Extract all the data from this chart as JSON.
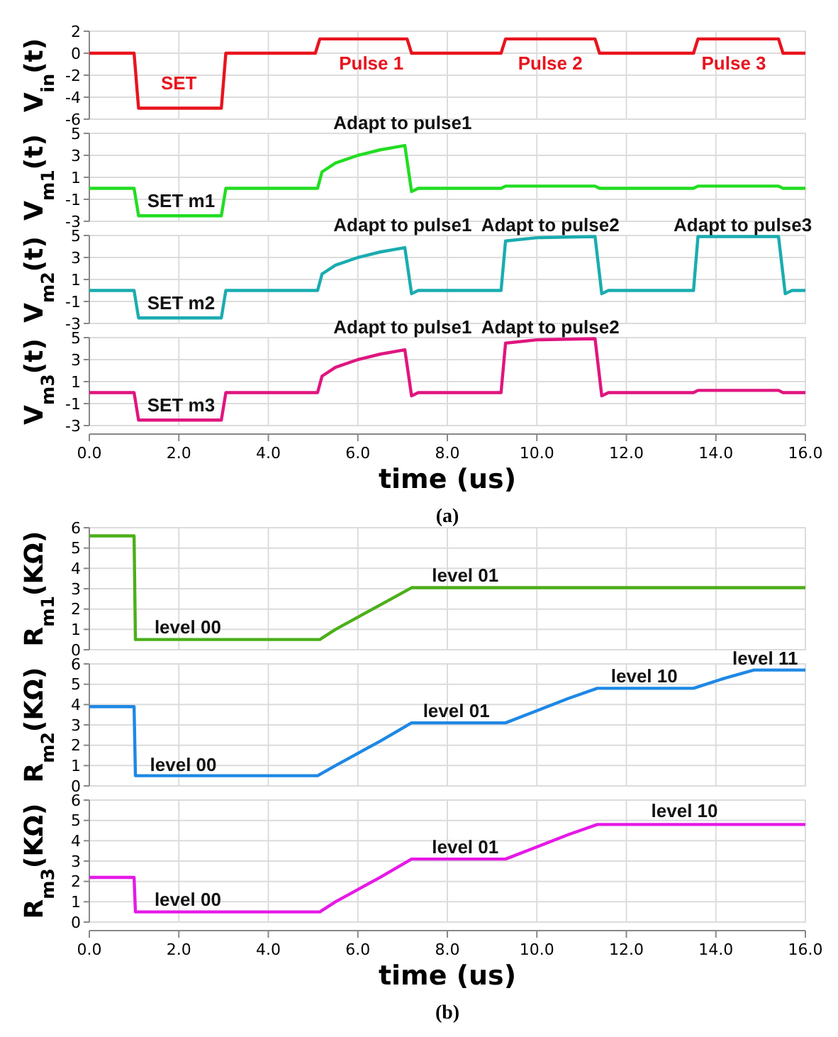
{
  "chart_data": [
    {
      "type": "line",
      "ylabel": "V$_{in}$(t)",
      "xlim": [
        0,
        16
      ],
      "xticks": [
        {
          "value": 0,
          "label": null
        },
        {
          "value": 2,
          "label": null
        },
        {
          "value": 4,
          "label": null
        },
        {
          "value": 6,
          "label": null
        },
        {
          "value": 8,
          "label": null
        },
        {
          "value": 10,
          "label": null
        },
        {
          "value": 12,
          "label": null
        },
        {
          "value": 14,
          "label": null
        },
        {
          "value": 16,
          "label": null
        }
      ],
      "ylim": [
        -6,
        2
      ],
      "yticks": [
        -6,
        -4,
        -2,
        0,
        2
      ],
      "grid": true,
      "tick_labels": "y",
      "series": [
        {
          "color": "#e8141e",
          "x": [
            0,
            1.0,
            1.1,
            2.95,
            3.05,
            5.05,
            5.15,
            7.1,
            7.2,
            9.2,
            9.3,
            11.3,
            11.4,
            13.5,
            13.6,
            15.4,
            15.5,
            16
          ],
          "values": [
            0,
            0,
            -5,
            -5,
            0,
            0,
            1.3,
            1.3,
            0,
            0,
            1.3,
            1.3,
            0,
            0,
            1.3,
            1.3,
            0,
            0
          ]
        }
      ],
      "annotations": [
        "SET",
        "Pulse 1",
        "Pulse 2",
        "Pulse 3"
      ]
    },
    {
      "type": "line",
      "ylabel": "V$_{m1}$(t)",
      "xlim": [
        0,
        16
      ],
      "xticks": [
        {
          "value": 0,
          "label": null
        },
        {
          "value": 2,
          "label": null
        },
        {
          "value": 4,
          "label": null
        },
        {
          "value": 6,
          "label": null
        },
        {
          "value": 8,
          "label": null
        },
        {
          "value": 10,
          "label": null
        },
        {
          "value": 12,
          "label": null
        },
        {
          "value": 14,
          "label": null
        },
        {
          "value": 16,
          "label": null
        }
      ],
      "ylim": [
        -3,
        5
      ],
      "yticks": [
        -3,
        -1,
        1,
        3,
        5
      ],
      "grid": true,
      "tick_labels": "y",
      "series": [
        {
          "color": "#22dd22",
          "x": [
            0,
            1.0,
            1.1,
            2.95,
            3.05,
            5.1,
            5.2,
            5.5,
            6.0,
            6.5,
            7.05,
            7.2,
            7.35,
            9.2,
            9.3,
            11.3,
            11.4,
            13.5,
            13.6,
            15.4,
            15.5,
            16
          ],
          "values": [
            0,
            0,
            -2.5,
            -2.5,
            0,
            0,
            1.5,
            2.3,
            3.0,
            3.5,
            3.9,
            -0.3,
            0,
            0,
            0.2,
            0.2,
            0,
            0,
            0.2,
            0.2,
            0,
            0
          ]
        }
      ],
      "annotations": [
        "Adapt to pulse1",
        "SET m1"
      ]
    },
    {
      "type": "line",
      "ylabel": "V$_{m2}$(t)",
      "xlim": [
        0,
        16
      ],
      "xticks": [
        {
          "value": 0,
          "label": null
        },
        {
          "value": 2,
          "label": null
        },
        {
          "value": 4,
          "label": null
        },
        {
          "value": 6,
          "label": null
        },
        {
          "value": 8,
          "label": null
        },
        {
          "value": 10,
          "label": null
        },
        {
          "value": 12,
          "label": null
        },
        {
          "value": 14,
          "label": null
        },
        {
          "value": 16,
          "label": null
        }
      ],
      "ylim": [
        -3,
        5
      ],
      "yticks": [
        -3,
        -1,
        1,
        3,
        5
      ],
      "grid": true,
      "tick_labels": "y",
      "series": [
        {
          "color": "#1aacb0",
          "x": [
            0,
            1.0,
            1.1,
            2.95,
            3.05,
            5.1,
            5.2,
            5.5,
            6.0,
            6.5,
            7.05,
            7.2,
            7.35,
            9.2,
            9.3,
            10.0,
            11.3,
            11.45,
            11.6,
            13.5,
            13.6,
            15.4,
            15.55,
            15.7,
            16
          ],
          "values": [
            0,
            0,
            -2.5,
            -2.5,
            0,
            0,
            1.5,
            2.3,
            3.0,
            3.5,
            3.9,
            -0.3,
            0,
            0,
            4.5,
            4.8,
            4.9,
            -0.3,
            0,
            0,
            4.9,
            4.9,
            -0.3,
            0,
            0
          ]
        }
      ],
      "annotations": [
        "Adapt to pulse1",
        "Adapt to pulse2",
        "Adapt to pulse3",
        "SET m2"
      ]
    },
    {
      "type": "line",
      "ylabel": "V$_{m3}$(t)",
      "xlabel": "time (us)",
      "xlim": [
        0,
        16
      ],
      "xticks": [
        {
          "value": 0,
          "label": "0.0"
        },
        {
          "value": 2,
          "label": "2.0"
        },
        {
          "value": 4,
          "label": "4.0"
        },
        {
          "value": 6,
          "label": "6.0"
        },
        {
          "value": 8,
          "label": "8.0"
        },
        {
          "value": 10,
          "label": "10.0"
        },
        {
          "value": 12,
          "label": "12.0"
        },
        {
          "value": 14,
          "label": "14.0"
        },
        {
          "value": 16,
          "label": "16.0"
        }
      ],
      "ylim": [
        -3,
        5
      ],
      "yticks": [
        -3,
        -1,
        1,
        3,
        5
      ],
      "grid": true,
      "series": [
        {
          "color": "#e0157f",
          "x": [
            0,
            1.0,
            1.1,
            2.95,
            3.05,
            5.1,
            5.2,
            5.5,
            6.0,
            6.5,
            7.05,
            7.2,
            7.35,
            9.2,
            9.3,
            10.0,
            11.3,
            11.45,
            11.6,
            13.5,
            13.6,
            15.4,
            15.5,
            16
          ],
          "values": [
            0,
            0,
            -2.5,
            -2.5,
            0,
            0,
            1.5,
            2.3,
            3.0,
            3.5,
            3.9,
            -0.3,
            0,
            0,
            4.5,
            4.8,
            4.9,
            -0.3,
            0,
            0,
            0.2,
            0.2,
            0,
            0
          ]
        }
      ],
      "annotations": [
        "Adapt to pulse1",
        "Adapt to pulse2",
        "SET m3",
        "(a)"
      ]
    },
    {
      "type": "line",
      "ylabel": "R$_{m1}$(KΩ)",
      "xlim": [
        0,
        16
      ],
      "xticks": [
        {
          "value": 0,
          "label": null
        },
        {
          "value": 2,
          "label": null
        },
        {
          "value": 4,
          "label": null
        },
        {
          "value": 6,
          "label": null
        },
        {
          "value": 8,
          "label": null
        },
        {
          "value": 10,
          "label": null
        },
        {
          "value": 12,
          "label": null
        },
        {
          "value": 14,
          "label": null
        },
        {
          "value": 16,
          "label": null
        }
      ],
      "ylim": [
        0,
        6
      ],
      "yticks": [
        0,
        1,
        2,
        3,
        4,
        5,
        6
      ],
      "grid": true,
      "tick_labels": "y",
      "series": [
        {
          "color": "#4caf1a",
          "x": [
            0,
            1.0,
            1.03,
            5.15,
            5.5,
            6.0,
            6.5,
            7.2,
            16
          ],
          "values": [
            5.6,
            5.6,
            0.5,
            0.5,
            1.0,
            1.6,
            2.2,
            3.05,
            3.05
          ]
        }
      ],
      "annotations": [
        "level 00",
        "level 01"
      ]
    },
    {
      "type": "line",
      "ylabel": "R$_{m2}$(KΩ)",
      "xlim": [
        0,
        16
      ],
      "xticks": [
        {
          "value": 0,
          "label": null
        },
        {
          "value": 2,
          "label": null
        },
        {
          "value": 4,
          "label": null
        },
        {
          "value": 6,
          "label": null
        },
        {
          "value": 8,
          "label": null
        },
        {
          "value": 10,
          "label": null
        },
        {
          "value": 12,
          "label": null
        },
        {
          "value": 14,
          "label": null
        },
        {
          "value": 16,
          "label": null
        }
      ],
      "ylim": [
        0,
        6
      ],
      "yticks": [
        0,
        1,
        2,
        3,
        4,
        5,
        6
      ],
      "grid": true,
      "tick_labels": "y",
      "series": [
        {
          "color": "#1e88e5",
          "x": [
            0,
            1.0,
            1.03,
            5.1,
            5.5,
            6.0,
            6.5,
            7.2,
            9.3,
            10.0,
            10.7,
            11.35,
            13.5,
            14.2,
            14.85,
            16
          ],
          "values": [
            3.9,
            3.9,
            0.5,
            0.5,
            1.0,
            1.6,
            2.2,
            3.1,
            3.1,
            3.7,
            4.3,
            4.8,
            4.8,
            5.3,
            5.7,
            5.7
          ]
        }
      ],
      "annotations": [
        "level 00",
        "level 01",
        "level 10",
        "level 11"
      ]
    },
    {
      "type": "line",
      "ylabel": "R$_{m3}$(KΩ)",
      "xlabel": "time (us)",
      "xlim": [
        0,
        16
      ],
      "xticks": [
        {
          "value": 0,
          "label": "0.0"
        },
        {
          "value": 2,
          "label": "2.0"
        },
        {
          "value": 4,
          "label": "4.0"
        },
        {
          "value": 6,
          "label": "6.0"
        },
        {
          "value": 8,
          "label": "8.0"
        },
        {
          "value": 10,
          "label": "10.0"
        },
        {
          "value": 12,
          "label": "12.0"
        },
        {
          "value": 14,
          "label": "14.0"
        },
        {
          "value": 16,
          "label": "16.0"
        }
      ],
      "ylim": [
        0,
        6
      ],
      "yticks": [
        0,
        1,
        2,
        3,
        4,
        5,
        6
      ],
      "grid": true,
      "series": [
        {
          "color": "#e619e6",
          "x": [
            0,
            1.0,
            1.03,
            5.15,
            5.5,
            6.0,
            6.5,
            7.2,
            9.3,
            10.0,
            10.7,
            11.35,
            16
          ],
          "values": [
            2.2,
            2.2,
            0.5,
            0.5,
            1.0,
            1.6,
            2.2,
            3.1,
            3.1,
            3.7,
            4.3,
            4.8,
            4.8
          ]
        }
      ],
      "annotations": [
        "level 00",
        "level 01",
        "level 10",
        "(b)"
      ]
    }
  ]
}
